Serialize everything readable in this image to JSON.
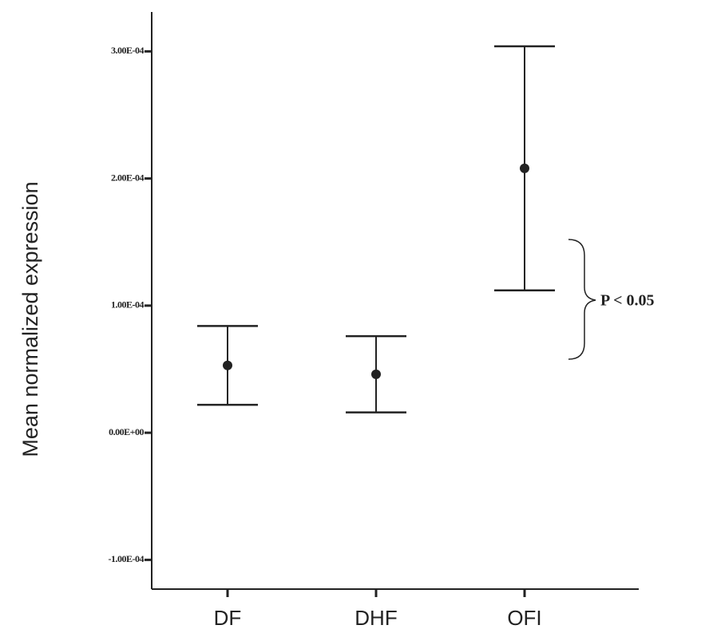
{
  "chart_data": {
    "type": "errorbar",
    "y_label": "Mean normalized expression",
    "categories": [
      "DF",
      "DHF",
      "OFI"
    ],
    "values": [
      5.3e-05,
      4.6e-05,
      0.000208
    ],
    "errors": [
      3.1e-05,
      3e-05,
      9.6e-05
    ],
    "color": "#222222",
    "ylim": [
      -0.000123,
      0.000331
    ],
    "yticks": [
      {
        "value": -0.0001,
        "label": "-1.00E-04"
      },
      {
        "value": 0,
        "label": "0.00E+00"
      },
      {
        "value": 0.0001,
        "label": "1.00E-04"
      },
      {
        "value": 0.0002,
        "label": "2.00E-04"
      },
      {
        "value": 0.0003,
        "label": "3.00E-04"
      }
    ],
    "annotation": "P < 0.05"
  }
}
